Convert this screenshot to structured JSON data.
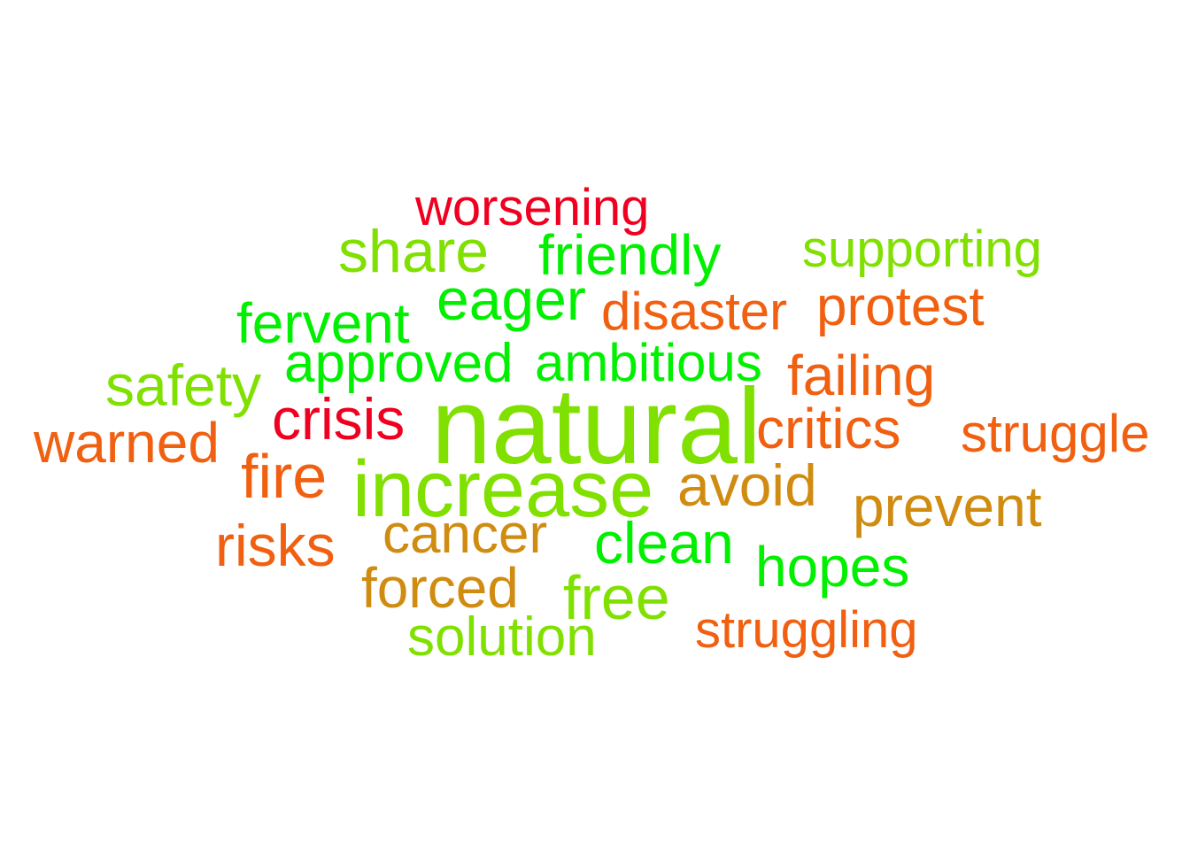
{
  "colors": {
    "red": "#f00020",
    "bright_green": "#00f000",
    "yellow_green": "#80e000",
    "orange": "#f06010",
    "amber": "#d08c10"
  },
  "words": [
    {
      "text": "worsening",
      "color": "#f00020"
    },
    {
      "text": "share",
      "color": "#80e000"
    },
    {
      "text": "friendly",
      "color": "#00f000"
    },
    {
      "text": "supporting",
      "color": "#80e000"
    },
    {
      "text": "eager",
      "color": "#00f000"
    },
    {
      "text": "disaster",
      "color": "#f06010"
    },
    {
      "text": "protest",
      "color": "#f06010"
    },
    {
      "text": "fervent",
      "color": "#00f000"
    },
    {
      "text": "approved",
      "color": "#00f000"
    },
    {
      "text": "ambitious",
      "color": "#00f000"
    },
    {
      "text": "failing",
      "color": "#f06010"
    },
    {
      "text": "safety",
      "color": "#80e000"
    },
    {
      "text": "crisis",
      "color": "#f00020"
    },
    {
      "text": "natural",
      "color": "#80e000"
    },
    {
      "text": "critics",
      "color": "#f06010"
    },
    {
      "text": "struggle",
      "color": "#f06010"
    },
    {
      "text": "warned",
      "color": "#f06010"
    },
    {
      "text": "fire",
      "color": "#f06010"
    },
    {
      "text": "increase",
      "color": "#80e000"
    },
    {
      "text": "avoid",
      "color": "#d08c10"
    },
    {
      "text": "prevent",
      "color": "#d08c10"
    },
    {
      "text": "cancer",
      "color": "#d08c10"
    },
    {
      "text": "clean",
      "color": "#00f000"
    },
    {
      "text": "risks",
      "color": "#f06010"
    },
    {
      "text": "hopes",
      "color": "#00f000"
    },
    {
      "text": "forced",
      "color": "#d08c10"
    },
    {
      "text": "free",
      "color": "#80e000"
    },
    {
      "text": "struggling",
      "color": "#f06010"
    },
    {
      "text": "solution",
      "color": "#80e000"
    }
  ]
}
